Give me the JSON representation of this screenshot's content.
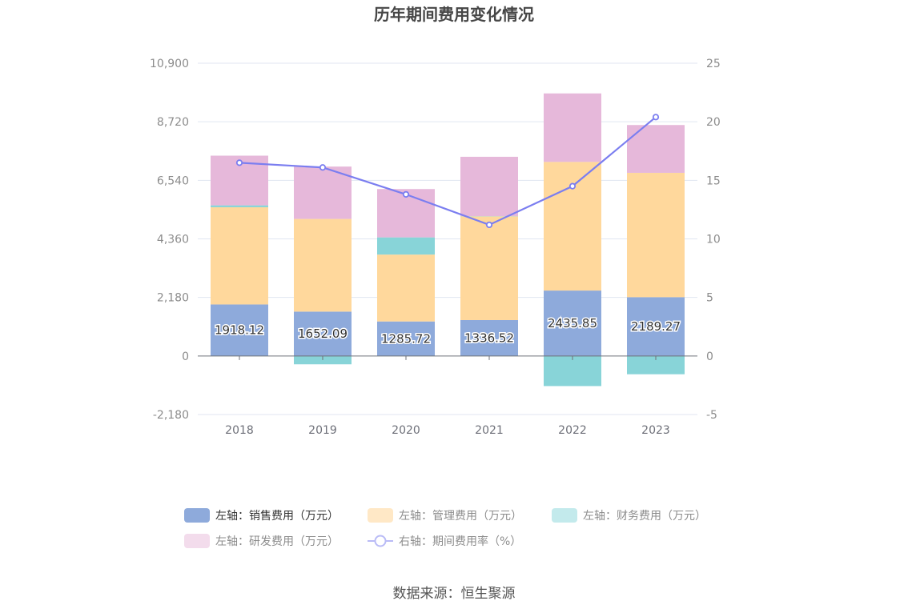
{
  "chart_data": {
    "type": "bar",
    "title": "历年期间费用变化情况",
    "categories": [
      "2018",
      "2019",
      "2020",
      "2021",
      "2022",
      "2023"
    ],
    "left_axis": {
      "ticks": [
        "10,900",
        "8,720",
        "6,540",
        "4,360",
        "2,180",
        "0",
        "-2,180"
      ],
      "ylim": [
        -2180,
        10900
      ]
    },
    "right_axis": {
      "ticks": [
        "25",
        "20",
        "15",
        "10",
        "5",
        "0",
        "-5"
      ],
      "ylim": [
        -5,
        25
      ]
    },
    "stacked": true,
    "series": [
      {
        "name": "左轴：销售费用（万元）",
        "axis": "left",
        "type": "bar",
        "color": "#8eaadb",
        "values": [
          1918.12,
          1652.09,
          1285.72,
          1336.52,
          2435.85,
          2189.27
        ],
        "labels": [
          "1918.12",
          "1652.09",
          "1285.72",
          "1336.52",
          "2435.85",
          "2189.27"
        ]
      },
      {
        "name": "左轴：管理费用（万元）",
        "axis": "left",
        "type": "bar",
        "color": "#ffd89c",
        "values": [
          3620,
          3450,
          2490,
          3860,
          4790,
          4630
        ]
      },
      {
        "name": "左轴：财务费用（万元）",
        "axis": "left",
        "type": "bar",
        "color": "#88d4d8",
        "values": [
          70,
          -310,
          640,
          10,
          -1120,
          -680
        ]
      },
      {
        "name": "左轴：研发费用（万元）",
        "axis": "left",
        "type": "bar",
        "color": "#e6b8da",
        "values": [
          1850,
          1950,
          1800,
          2210,
          2550,
          1780
        ]
      },
      {
        "name": "右轴：期间费用率（%）",
        "axis": "right",
        "type": "line",
        "color": "#7b7ef0",
        "values": [
          16.5,
          16.1,
          13.8,
          11.2,
          14.5,
          20.4
        ]
      }
    ],
    "legend_position": "bottom",
    "grid": true
  },
  "legend": [
    {
      "label": "左轴：销售费用（万元）",
      "color": "#8eaadb",
      "kind": "bar",
      "active": true
    },
    {
      "label": "左轴：管理费用（万元）",
      "color": "#ffe8c6",
      "kind": "bar",
      "active": false
    },
    {
      "label": "左轴：财务费用（万元）",
      "color": "#c3eaec",
      "kind": "bar",
      "active": false
    },
    {
      "label": "左轴：研发费用（万元）",
      "color": "#f3dcec",
      "kind": "bar",
      "active": false
    },
    {
      "label": "右轴：期间费用率（%）",
      "color": "#b9bbf6",
      "kind": "line",
      "active": false
    }
  ],
  "source": "数据来源：恒生聚源"
}
